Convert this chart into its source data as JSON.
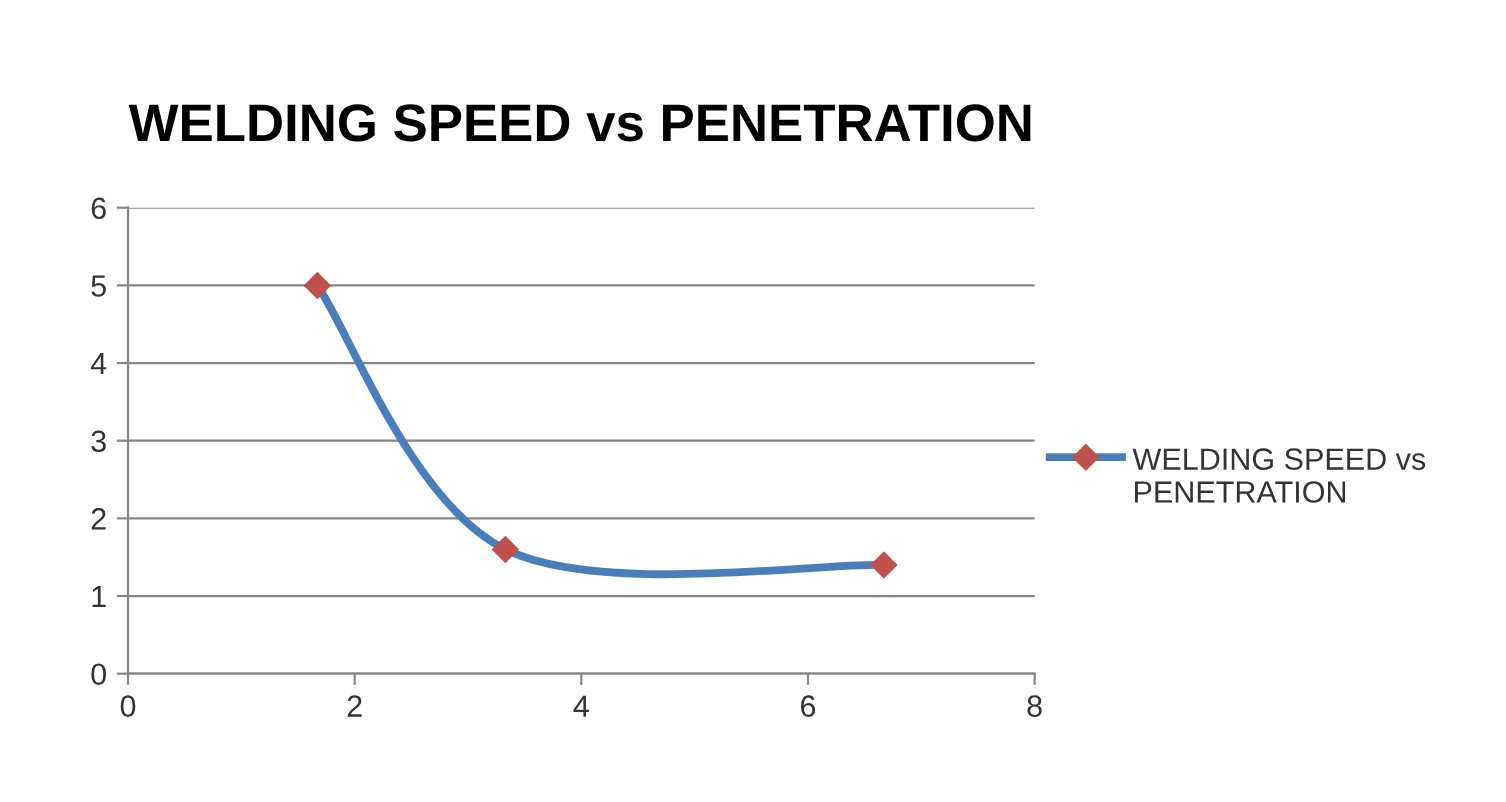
{
  "chart_data": {
    "type": "line",
    "title": "WELDING SPEED vs PENETRATION",
    "x": [
      1.67,
      3.33,
      6.67
    ],
    "series": [
      {
        "name": "WELDING SPEED vs PENETRATION",
        "color": "#4a7ebb",
        "colors": [
          "#c0504d",
          "#c0504d",
          "#c0504d"
        ],
        "values": [
          5,
          1.6,
          1.4
        ]
      }
    ],
    "xlim": [
      0,
      8
    ],
    "xticks": [
      0,
      2,
      4,
      6,
      8
    ],
    "ylim": [
      0,
      6
    ],
    "yticks": [
      0,
      1,
      2,
      3,
      4,
      5,
      6
    ],
    "grid": "y",
    "legend": "right",
    "marker": "diamond",
    "line_style": "solid"
  }
}
